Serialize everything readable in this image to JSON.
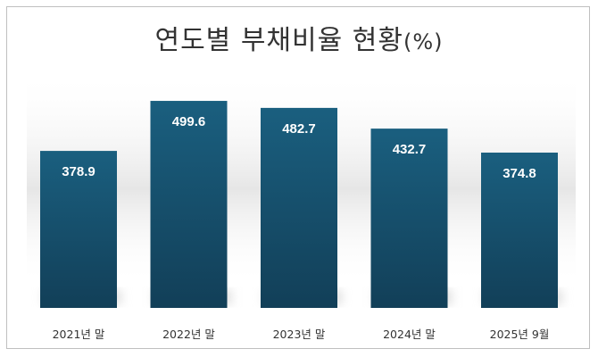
{
  "chart_data": {
    "type": "bar",
    "title": "연도별 부채비율 현황",
    "title_suffix": "(%)",
    "categories": [
      "2021년 말",
      "2022년 말",
      "2023년 말",
      "2024년 말",
      "2025년 9월"
    ],
    "values": [
      378.9,
      499.6,
      482.7,
      432.7,
      374.8
    ],
    "value_labels": [
      "378.9",
      "499.6",
      "482.7",
      "432.7",
      "374.8"
    ],
    "xlabel": "",
    "ylabel": "",
    "ylim": [
      0,
      560
    ],
    "grid": false,
    "legend": "none",
    "colors": {
      "bar_top": "#1a5f7f",
      "bar_bottom": "#123f58",
      "label": "#ffffff",
      "axis_text": "#333333",
      "shadow": "#d9d9d9"
    }
  }
}
